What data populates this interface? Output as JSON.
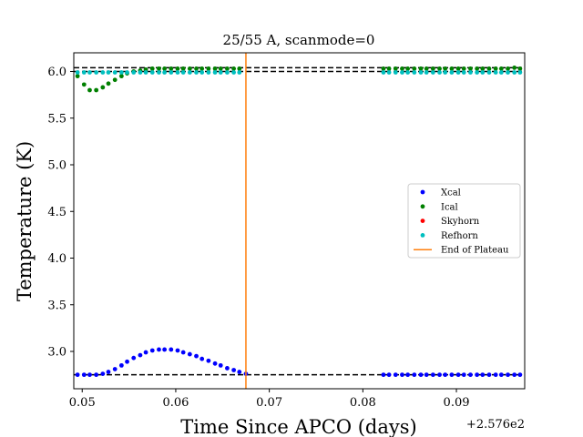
{
  "chart_data": {
    "type": "scatter",
    "title": "25/55 A, scanmode=0",
    "xlabel": "Time Since APCO (days)",
    "ylabel": "Temperature (K)",
    "x_offset_label": "+2.576e2",
    "xlim": [
      0.0491,
      0.0973
    ],
    "ylim": [
      2.6,
      6.2
    ],
    "x_ticks": [
      {
        "value": 0.05,
        "label": "0.05"
      },
      {
        "value": 0.06,
        "label": "0.06"
      },
      {
        "value": 0.07,
        "label": "0.07"
      },
      {
        "value": 0.08,
        "label": "0.08"
      },
      {
        "value": 0.09,
        "label": "0.09"
      }
    ],
    "y_ticks": [
      {
        "value": 3.0,
        "label": "3.0"
      },
      {
        "value": 3.5,
        "label": "3.5"
      },
      {
        "value": 4.0,
        "label": "4.0"
      },
      {
        "value": 4.5,
        "label": "4.5"
      },
      {
        "value": 5.0,
        "label": "5.0"
      },
      {
        "value": 5.5,
        "label": "5.5"
      },
      {
        "value": 6.0,
        "label": "6.0"
      }
    ],
    "reference_lines": [
      {
        "y": 2.75,
        "style": "dashed",
        "color": "#000000"
      },
      {
        "y": 6.0,
        "style": "dashed",
        "color": "#000000"
      },
      {
        "y": 6.04,
        "style": "dashed",
        "color": "#000000"
      }
    ],
    "vertical_line": {
      "x": 0.0675,
      "color": "#ff7f0e"
    },
    "series": [
      {
        "name": "Xcal",
        "color": "#0000ff",
        "x": [
          0.0495,
          0.0502,
          0.0508,
          0.0515,
          0.0522,
          0.0528,
          0.0535,
          0.0542,
          0.0548,
          0.0555,
          0.0562,
          0.0568,
          0.0575,
          0.0582,
          0.0588,
          0.0595,
          0.0602,
          0.0608,
          0.0615,
          0.0622,
          0.0628,
          0.0635,
          0.0642,
          0.0648,
          0.0655,
          0.0662,
          0.0668,
          0.0675,
          0.0822,
          0.0828,
          0.0835,
          0.0842,
          0.0848,
          0.0855,
          0.0862,
          0.0868,
          0.0875,
          0.0882,
          0.0888,
          0.0895,
          0.0902,
          0.0908,
          0.0915,
          0.0922,
          0.0928,
          0.0935,
          0.0942,
          0.0948,
          0.0955,
          0.0962,
          0.0968
        ],
        "y": [
          2.75,
          2.75,
          2.75,
          2.75,
          2.76,
          2.78,
          2.81,
          2.85,
          2.89,
          2.93,
          2.96,
          2.99,
          3.01,
          3.02,
          3.02,
          3.02,
          3.01,
          2.99,
          2.97,
          2.95,
          2.92,
          2.9,
          2.87,
          2.85,
          2.82,
          2.8,
          2.78,
          2.76,
          2.75,
          2.75,
          2.75,
          2.75,
          2.75,
          2.75,
          2.75,
          2.75,
          2.75,
          2.75,
          2.75,
          2.75,
          2.75,
          2.75,
          2.75,
          2.75,
          2.75,
          2.75,
          2.75,
          2.75,
          2.75,
          2.75,
          2.75
        ]
      },
      {
        "name": "Ical",
        "color": "#008000",
        "x": [
          0.0495,
          0.0502,
          0.0508,
          0.0515,
          0.0522,
          0.0528,
          0.0535,
          0.0542,
          0.0548,
          0.0555,
          0.0562,
          0.0568,
          0.0575,
          0.0582,
          0.0588,
          0.0595,
          0.0602,
          0.0608,
          0.0615,
          0.0622,
          0.0628,
          0.0635,
          0.0642,
          0.0648,
          0.0655,
          0.0662,
          0.0668,
          0.0822,
          0.0828,
          0.0835,
          0.0842,
          0.0848,
          0.0855,
          0.0862,
          0.0868,
          0.0875,
          0.0882,
          0.0888,
          0.0895,
          0.0902,
          0.0908,
          0.0915,
          0.0922,
          0.0928,
          0.0935,
          0.0942,
          0.0948,
          0.0955,
          0.0962,
          0.0968
        ],
        "y": [
          5.95,
          5.86,
          5.8,
          5.8,
          5.83,
          5.87,
          5.91,
          5.95,
          5.98,
          6.0,
          6.01,
          6.02,
          6.03,
          6.03,
          6.03,
          6.03,
          6.03,
          6.03,
          6.03,
          6.03,
          6.03,
          6.03,
          6.03,
          6.03,
          6.03,
          6.03,
          6.03,
          6.03,
          6.03,
          6.03,
          6.03,
          6.03,
          6.03,
          6.03,
          6.03,
          6.03,
          6.03,
          6.03,
          6.03,
          6.03,
          6.03,
          6.03,
          6.03,
          6.03,
          6.03,
          6.03,
          6.03,
          6.03,
          6.04,
          6.03
        ]
      },
      {
        "name": "Skyhorn",
        "color": "#ff0000",
        "x": [],
        "y": []
      },
      {
        "name": "Refhorn",
        "color": "#00bfbf",
        "x": [
          0.0495,
          0.0502,
          0.0508,
          0.0515,
          0.0522,
          0.0528,
          0.0535,
          0.0542,
          0.0548,
          0.0555,
          0.0562,
          0.0568,
          0.0575,
          0.0582,
          0.0588,
          0.0595,
          0.0602,
          0.0608,
          0.0615,
          0.0622,
          0.0628,
          0.0635,
          0.0642,
          0.0648,
          0.0655,
          0.0662,
          0.0668,
          0.0822,
          0.0828,
          0.0835,
          0.0842,
          0.0848,
          0.0855,
          0.0862,
          0.0868,
          0.0875,
          0.0882,
          0.0888,
          0.0895,
          0.0902,
          0.0908,
          0.0915,
          0.0922,
          0.0928,
          0.0935,
          0.0942,
          0.0948,
          0.0955,
          0.0962,
          0.0968
        ],
        "y": [
          5.99,
          5.99,
          5.99,
          5.99,
          5.99,
          5.99,
          5.99,
          5.99,
          5.99,
          5.99,
          5.99,
          5.99,
          5.99,
          5.99,
          5.99,
          5.99,
          5.99,
          5.99,
          5.99,
          5.99,
          5.99,
          5.99,
          5.99,
          5.99,
          5.99,
          5.99,
          5.99,
          5.99,
          5.99,
          5.99,
          5.99,
          5.99,
          5.99,
          5.99,
          5.99,
          5.99,
          5.99,
          5.99,
          5.99,
          5.99,
          5.99,
          5.99,
          5.99,
          5.99,
          5.99,
          5.99,
          5.99,
          5.99,
          5.99,
          5.99
        ]
      }
    ],
    "legend": {
      "placement": "center-right",
      "entries": [
        {
          "label": "Xcal",
          "color": "#0000ff",
          "marker": "dot"
        },
        {
          "label": "Ical",
          "color": "#008000",
          "marker": "dot"
        },
        {
          "label": "Skyhorn",
          "color": "#ff0000",
          "marker": "dot"
        },
        {
          "label": "Refhorn",
          "color": "#00bfbf",
          "marker": "dot"
        },
        {
          "label": "End of Plateau",
          "color": "#ff7f0e",
          "marker": "line"
        }
      ]
    },
    "grid": false
  }
}
